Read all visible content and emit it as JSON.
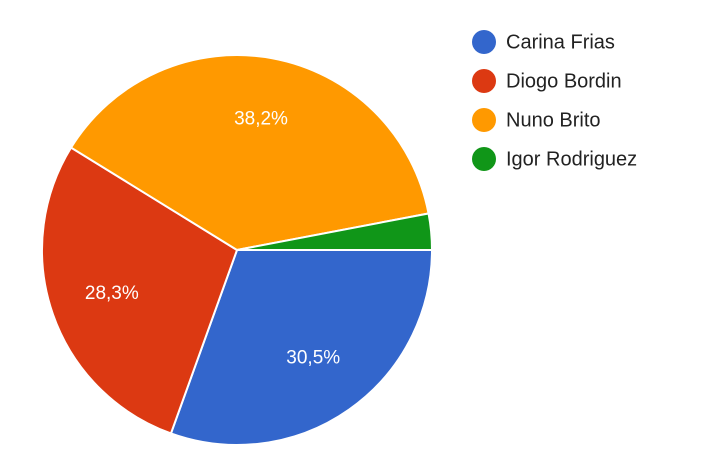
{
  "chart_data": {
    "type": "pie",
    "categories": [
      "Carina Frias",
      "Diogo Bordin",
      "Nuno Brito",
      "Igor Rodriguez"
    ],
    "values": [
      30.5,
      28.3,
      38.2,
      3.0
    ],
    "value_labels": [
      "30,5%",
      "28,3%",
      "38,2%",
      null
    ],
    "colors": [
      "#3366cc",
      "#dc3912",
      "#ff9900",
      "#109618"
    ],
    "legend": "right"
  }
}
